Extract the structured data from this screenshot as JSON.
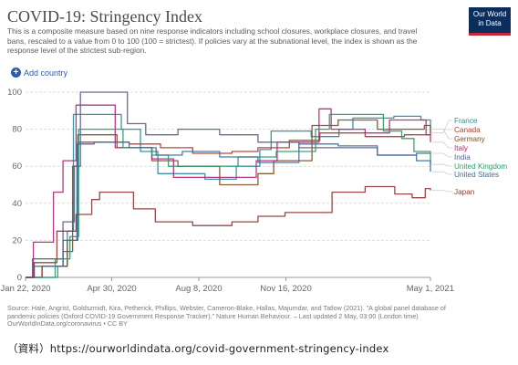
{
  "header": {
    "title": "COVID-19: Stringency Index",
    "subtitle": "This is a composite measure based on nine response indicators including school closures, workplace closures, and travel bans, rescaled to a value from 0 to 100 (100 = strictest). If policies vary at the subnational level, the index is shown as the response level of the strictest sub-region.",
    "logo_line1": "Our World",
    "logo_line2": "in Data",
    "add_country_label": "Add country",
    "add_icon": "plus-circle-icon"
  },
  "footer": {
    "source": "Source: Hale, Angrist, Goldszmidt, Kira, Petherick, Phillips, Webster, Cameron-Blake, Hallas, Majumdar, and Tatlow (2021). \"A global panel database of pandemic policies (Oxford COVID-19 Government Response Tracker).\" Nature Human Behaviour. – Last updated 2 May, 03:00 (London time)",
    "url_license": "OurWorldInData.org/coronavirus • CC BY",
    "caption": "（資料）https://ourworldindata.org/covid-government-stringency-index"
  },
  "colors": {
    "brand": "#0b2e5c",
    "accent": "#c4283b",
    "link": "#2e5aa7"
  },
  "chart_data": {
    "type": "line",
    "title": "COVID-19: Stringency Index",
    "xlabel": "",
    "ylabel": "",
    "ylim": [
      0,
      100
    ],
    "yticks": [
      0,
      20,
      40,
      60,
      80,
      100
    ],
    "x_type": "date",
    "xlim": [
      "2020-01-22",
      "2021-05-01"
    ],
    "xticks": [
      {
        "date": "2020-01-22",
        "label": "Jan 22, 2020"
      },
      {
        "date": "2020-04-30",
        "label": "Apr 30, 2020"
      },
      {
        "date": "2020-08-08",
        "label": "Aug 8, 2020"
      },
      {
        "date": "2020-11-16",
        "label": "Nov 16, 2020"
      },
      {
        "date": "2021-05-01",
        "label": "May 1, 2021"
      }
    ],
    "grid": "horizontal-dashed",
    "legend": "right",
    "series": [
      {
        "name": "France",
        "color": "#2b8b9b",
        "points": [
          [
            "2020-01-22",
            0
          ],
          [
            "2020-02-28",
            6
          ],
          [
            "2020-03-10",
            25
          ],
          [
            "2020-03-17",
            88
          ],
          [
            "2020-05-11",
            80
          ],
          [
            "2020-06-02",
            68
          ],
          [
            "2020-06-22",
            56
          ],
          [
            "2020-08-15",
            53
          ],
          [
            "2020-09-20",
            60
          ],
          [
            "2020-10-17",
            69
          ],
          [
            "2020-10-30",
            79
          ],
          [
            "2020-12-15",
            76
          ],
          [
            "2021-01-16",
            80
          ],
          [
            "2021-02-01",
            86
          ],
          [
            "2021-03-20",
            87
          ],
          [
            "2021-04-03",
            87
          ],
          [
            "2021-04-20",
            85
          ],
          [
            "2021-05-01",
            78
          ]
        ]
      },
      {
        "name": "Canada",
        "color": "#b03a2e",
        "points": [
          [
            "2020-01-22",
            0
          ],
          [
            "2020-02-10",
            6
          ],
          [
            "2020-03-05",
            14
          ],
          [
            "2020-03-16",
            60
          ],
          [
            "2020-03-22",
            73
          ],
          [
            "2020-04-10",
            73
          ],
          [
            "2020-05-20",
            72
          ],
          [
            "2020-06-25",
            70
          ],
          [
            "2020-08-01",
            67
          ],
          [
            "2020-09-15",
            68
          ],
          [
            "2020-10-15",
            70
          ],
          [
            "2020-11-20",
            74
          ],
          [
            "2020-12-25",
            78
          ],
          [
            "2021-02-15",
            76
          ],
          [
            "2021-04-01",
            77
          ],
          [
            "2021-05-01",
            80
          ]
        ]
      },
      {
        "name": "Germany",
        "color": "#7a4f2e",
        "points": [
          [
            "2020-01-22",
            0
          ],
          [
            "2020-02-10",
            6
          ],
          [
            "2020-03-10",
            20
          ],
          [
            "2020-03-22",
            77
          ],
          [
            "2020-05-06",
            70
          ],
          [
            "2020-06-15",
            63
          ],
          [
            "2020-07-15",
            60
          ],
          [
            "2020-09-01",
            50
          ],
          [
            "2020-10-15",
            56
          ],
          [
            "2020-11-02",
            63
          ],
          [
            "2020-12-16",
            82
          ],
          [
            "2021-01-15",
            85
          ],
          [
            "2021-03-01",
            80
          ],
          [
            "2021-04-24",
            82
          ],
          [
            "2021-05-01",
            80
          ]
        ]
      },
      {
        "name": "Italy",
        "color": "#b0287a",
        "points": [
          [
            "2020-01-22",
            0
          ],
          [
            "2020-01-31",
            19
          ],
          [
            "2020-02-23",
            46
          ],
          [
            "2020-03-05",
            63
          ],
          [
            "2020-03-20",
            93
          ],
          [
            "2020-05-04",
            70
          ],
          [
            "2020-06-15",
            64
          ],
          [
            "2020-07-10",
            54
          ],
          [
            "2020-09-15",
            54
          ],
          [
            "2020-10-13",
            63
          ],
          [
            "2020-11-06",
            73
          ],
          [
            "2020-12-24",
            91
          ],
          [
            "2021-01-07",
            80
          ],
          [
            "2021-02-15",
            78
          ],
          [
            "2021-03-15",
            85
          ],
          [
            "2021-04-26",
            77
          ],
          [
            "2021-05-01",
            73
          ]
        ]
      },
      {
        "name": "India",
        "color": "#5a5f8a",
        "points": [
          [
            "2020-01-22",
            0
          ],
          [
            "2020-01-30",
            10
          ],
          [
            "2020-03-05",
            30
          ],
          [
            "2020-03-18",
            60
          ],
          [
            "2020-03-25",
            100
          ],
          [
            "2020-05-18",
            83
          ],
          [
            "2020-06-08",
            77
          ],
          [
            "2020-07-15",
            80
          ],
          [
            "2020-09-01",
            77
          ],
          [
            "2020-10-15",
            73
          ],
          [
            "2020-12-01",
            70
          ],
          [
            "2021-01-15",
            70
          ],
          [
            "2021-03-01",
            66
          ],
          [
            "2021-04-15",
            67
          ],
          [
            "2021-05-01",
            67
          ]
        ]
      },
      {
        "name": "United Kingdom",
        "color": "#2c9a6b",
        "points": [
          [
            "2020-01-22",
            0
          ],
          [
            "2020-02-25",
            10
          ],
          [
            "2020-03-13",
            22
          ],
          [
            "2020-03-23",
            80
          ],
          [
            "2020-05-13",
            70
          ],
          [
            "2020-06-15",
            66
          ],
          [
            "2020-07-04",
            60
          ],
          [
            "2020-08-15",
            60
          ],
          [
            "2020-09-22",
            65
          ],
          [
            "2020-11-05",
            68
          ],
          [
            "2020-12-20",
            80
          ],
          [
            "2021-01-05",
            88
          ],
          [
            "2021-03-08",
            79
          ],
          [
            "2021-03-29",
            75
          ],
          [
            "2021-04-12",
            68
          ],
          [
            "2021-05-01",
            61
          ]
        ]
      },
      {
        "name": "United States",
        "color": "#3d6f9e",
        "points": [
          [
            "2020-01-22",
            0
          ],
          [
            "2020-02-01",
            6
          ],
          [
            "2020-03-05",
            20
          ],
          [
            "2020-03-21",
            72
          ],
          [
            "2020-04-10",
            73
          ],
          [
            "2020-05-20",
            70
          ],
          [
            "2020-06-20",
            66
          ],
          [
            "2020-07-20",
            68
          ],
          [
            "2020-09-01",
            65
          ],
          [
            "2020-10-15",
            62
          ],
          [
            "2020-12-01",
            72
          ],
          [
            "2021-01-15",
            71
          ],
          [
            "2021-03-01",
            66
          ],
          [
            "2021-04-15",
            63
          ],
          [
            "2021-05-01",
            57
          ]
        ]
      },
      {
        "name": "Japan",
        "color": "#8b3a3a",
        "points": [
          [
            "2020-01-22",
            0
          ],
          [
            "2020-02-01",
            8
          ],
          [
            "2020-02-27",
            25
          ],
          [
            "2020-03-20",
            34
          ],
          [
            "2020-04-07",
            42
          ],
          [
            "2020-04-16",
            46
          ],
          [
            "2020-05-25",
            37
          ],
          [
            "2020-06-19",
            30
          ],
          [
            "2020-08-01",
            28
          ],
          [
            "2020-09-15",
            30
          ],
          [
            "2020-10-15",
            33
          ],
          [
            "2020-11-15",
            35
          ],
          [
            "2021-01-08",
            46
          ],
          [
            "2021-02-15",
            49
          ],
          [
            "2021-03-21",
            45
          ],
          [
            "2021-04-10",
            43
          ],
          [
            "2021-04-25",
            48
          ],
          [
            "2021-05-01",
            47
          ]
        ]
      }
    ]
  }
}
